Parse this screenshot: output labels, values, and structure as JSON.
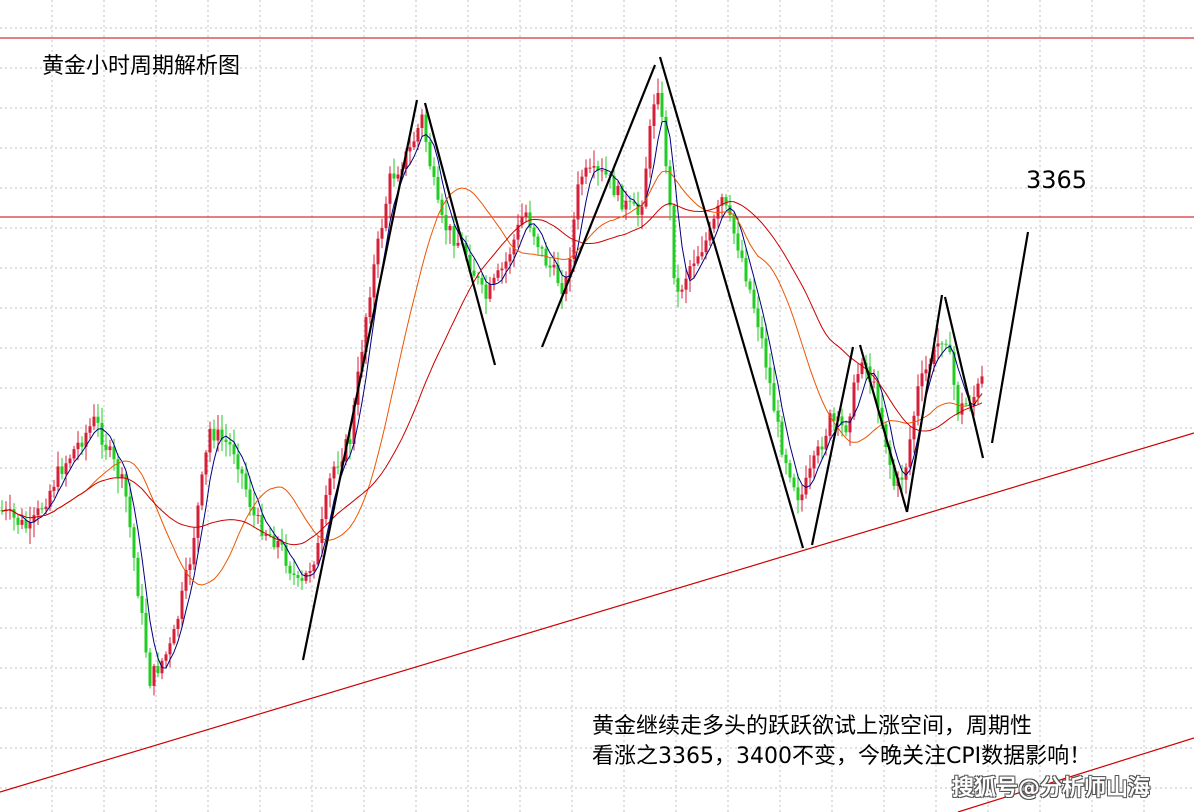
{
  "chart_data": {
    "type": "candlestick",
    "title": "黄金小时周期解析图",
    "target_label": "3365",
    "annotation_lines": [
      "黄金继续走多头的跃跃欲试上涨空间，周期性",
      "看涨之3365，3400不变，今晚关注CPI数据影响！"
    ],
    "watermark": "搜狐号@分析师山海",
    "horizontal_levels": [
      {
        "name": "resistance-top"
      },
      {
        "name": "resistance-3365"
      }
    ],
    "colors": {
      "up_candle": "#d6203a",
      "down_candle": "#22cc22",
      "ma_fast": "#000080",
      "ma_mid": "#ee5500",
      "ma_slow": "#cc0000",
      "levels": "#cc0000",
      "trendline": "#cc0000",
      "wave_lines": "#000000",
      "grid": "#c0c0c0"
    },
    "grid": true
  }
}
